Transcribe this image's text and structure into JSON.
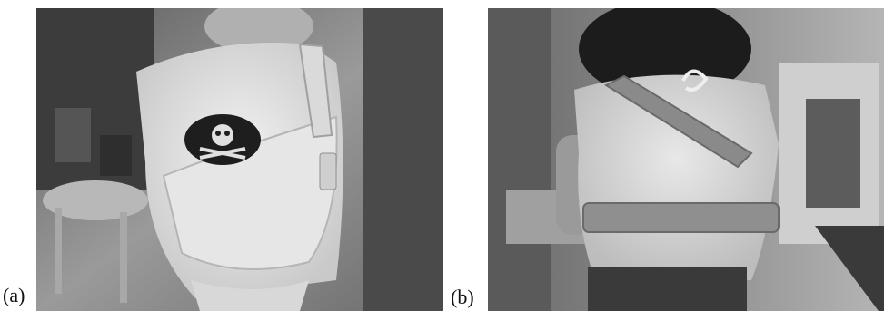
{
  "figure": {
    "panels": [
      {
        "label": "(a)",
        "image": "child-front-view-wearing-sling-vest-with-pirate-skull-emblem"
      },
      {
        "label": "(b)",
        "image": "child-back-view-wearing-sling-vest-with-strap-and-waist-belt"
      }
    ]
  }
}
